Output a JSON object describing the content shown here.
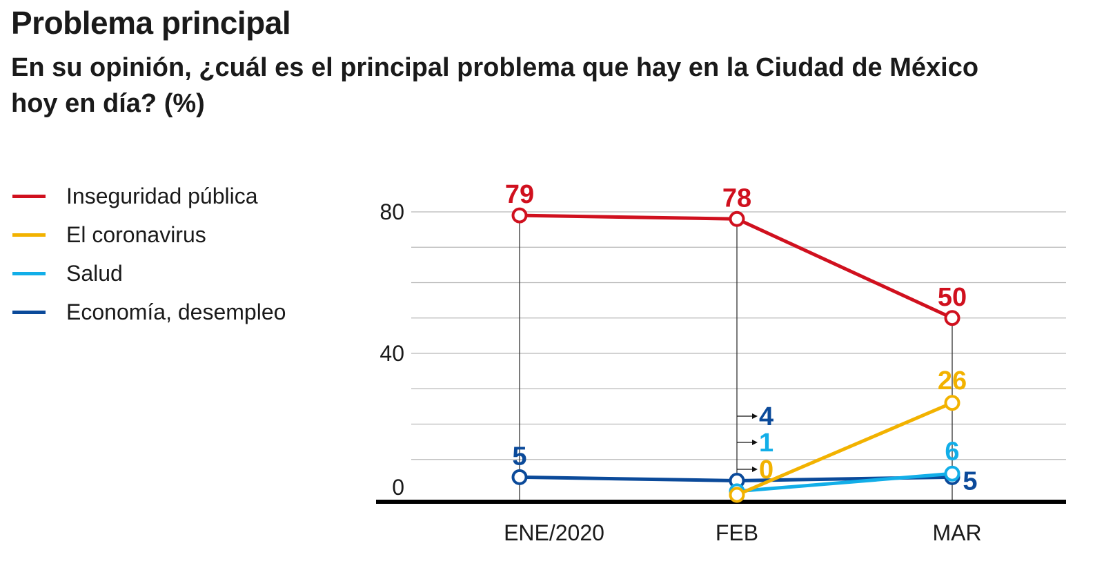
{
  "title": "Problema principal",
  "subtitle": "En su opinión, ¿cuál es el principal problema que hay en la Ciudad de México hoy en día?  (%)",
  "legend": [
    {
      "label": "Inseguridad pública",
      "color": "#d0101e"
    },
    {
      "label": "El coronavirus",
      "color": "#f2b200"
    },
    {
      "label": "Salud",
      "color": "#12aee8"
    },
    {
      "label": "Economía, desempleo",
      "color": "#0b4a9a"
    }
  ],
  "chart_data": {
    "type": "line",
    "title": "Problema principal",
    "x": [
      "ENE/2020",
      "FEB",
      "MAR"
    ],
    "ylim": [
      0,
      80
    ],
    "yticks": [
      "0",
      "40",
      "80"
    ],
    "grid": true,
    "legend_position": "left",
    "series": [
      {
        "name": "Inseguridad pública",
        "color": "#d0101e",
        "values": [
          79,
          78,
          50
        ]
      },
      {
        "name": "El coronavirus",
        "color": "#f2b200",
        "values": [
          null,
          0,
          26
        ]
      },
      {
        "name": "Salud",
        "color": "#12aee8",
        "values": [
          null,
          1,
          6
        ]
      },
      {
        "name": "Economía, desempleo",
        "color": "#0b4a9a",
        "values": [
          5,
          4,
          5
        ]
      }
    ]
  }
}
